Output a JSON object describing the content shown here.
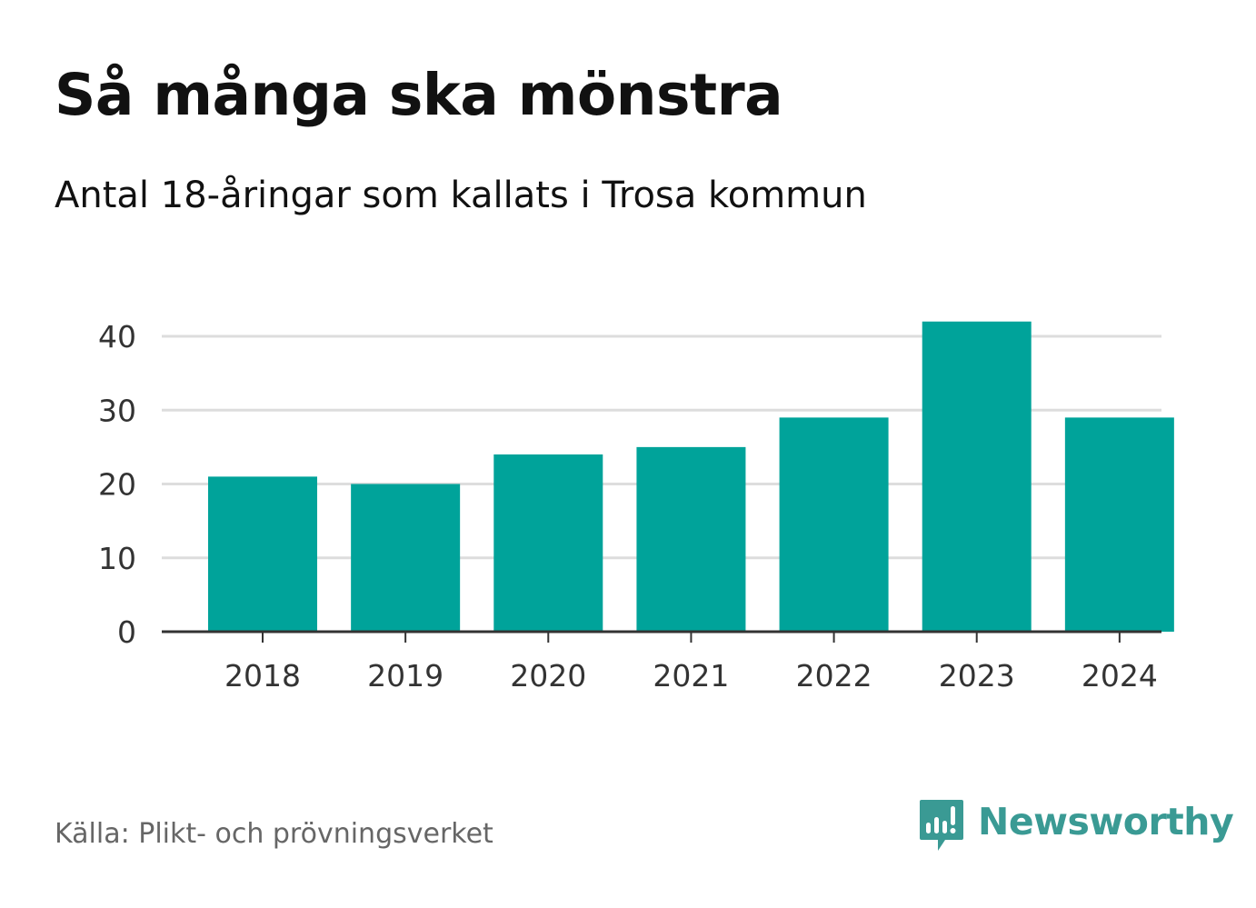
{
  "header": {
    "title": "Så många ska mönstra",
    "subtitle": "Antal 18-åringar som kallats i Trosa kommun"
  },
  "footer": {
    "source": "Källa: Plikt- och prövningsverket",
    "brand": "Newsworthy"
  },
  "colors": {
    "bar": "#00a39a",
    "grid": "#dddddd",
    "axis": "#333333",
    "brand": "#3a9a94"
  },
  "chart_data": {
    "type": "bar",
    "title": "Så många ska mönstra",
    "subtitle": "Antal 18-åringar som kallats i Trosa kommun",
    "categories": [
      "2018",
      "2019",
      "2020",
      "2021",
      "2022",
      "2023",
      "2024"
    ],
    "values": [
      21,
      20,
      24,
      25,
      29,
      42,
      29
    ],
    "xlabel": "",
    "ylabel": "",
    "ylim": [
      0,
      42
    ],
    "yticks": [
      0,
      10,
      20,
      30,
      40
    ],
    "grid": true,
    "legend": "none"
  }
}
